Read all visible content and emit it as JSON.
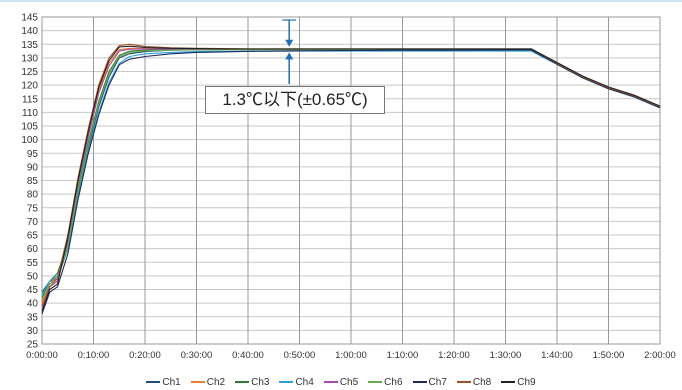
{
  "chart_data": {
    "type": "line",
    "xlabel": "",
    "ylabel": "",
    "x_tick_labels": [
      "0:00:00",
      "0:10:00",
      "0:20:00",
      "0:30:00",
      "0:40:00",
      "0:50:00",
      "1:00:00",
      "1:10:00",
      "1:20:00",
      "1:30:00",
      "1:40:00",
      "1:50:00",
      "2:00:00"
    ],
    "xlim": [
      0,
      120
    ],
    "x_unit": "minutes",
    "ylim": [
      25,
      145
    ],
    "y_tick_step": 5,
    "grid": "major vertical every 10 min, horizontal every 5",
    "legend_position": "bottom",
    "annotation": {
      "text": "1.3℃以下(±0.65℃)",
      "x": 48,
      "y_range": [
        132.4,
        133.7
      ]
    },
    "series": [
      {
        "name": "Ch1",
        "color": "#1f4e79",
        "x": [
          0,
          1.5,
          3,
          5,
          7,
          9,
          11,
          13,
          15,
          17,
          20,
          25,
          30,
          35,
          40,
          50,
          60,
          70,
          80,
          90,
          95,
          100,
          105,
          110,
          115,
          120
        ],
        "y": [
          44,
          48,
          49,
          60,
          80,
          97,
          112,
          123,
          130,
          131.5,
          132.3,
          132.8,
          133,
          133.1,
          133.1,
          133.1,
          133.2,
          133.2,
          133.2,
          133.2,
          133.2,
          128,
          123,
          119,
          116,
          112
        ]
      },
      {
        "name": "Ch2",
        "color": "#ed7d31",
        "x": [
          0,
          1.5,
          3,
          5,
          7,
          9,
          11,
          13,
          15,
          17,
          20,
          25,
          30,
          35,
          40,
          50,
          60,
          70,
          80,
          90,
          95,
          100,
          105,
          110,
          115,
          120
        ],
        "y": [
          40,
          47,
          50,
          64,
          85,
          102,
          118,
          128,
          133,
          133.5,
          133.4,
          133.3,
          133.2,
          133.2,
          133.2,
          133.2,
          133.2,
          133.2,
          133.2,
          133.2,
          133.2,
          127.8,
          122.8,
          118.8,
          115.8,
          111.8
        ]
      },
      {
        "name": "Ch3",
        "color": "#2e7d32",
        "x": [
          0,
          1.5,
          3,
          5,
          7,
          9,
          11,
          13,
          15,
          17,
          20,
          25,
          30,
          35,
          40,
          50,
          60,
          70,
          80,
          90,
          95,
          100,
          105,
          110,
          115,
          120
        ],
        "y": [
          42,
          48,
          51,
          62,
          82,
          99,
          114,
          125,
          131,
          132.5,
          132.8,
          133,
          133,
          133.1,
          133.1,
          133.1,
          133.1,
          133.1,
          133.1,
          133.1,
          133.1,
          128.2,
          123.2,
          119.2,
          116.2,
          112.2
        ]
      },
      {
        "name": "Ch4",
        "color": "#2e9fd8",
        "x": [
          0,
          1.5,
          3,
          5,
          7,
          9,
          11,
          13,
          15,
          17,
          20,
          25,
          30,
          35,
          40,
          50,
          60,
          70,
          80,
          90,
          95,
          100,
          105,
          110,
          115,
          120
        ],
        "y": [
          43,
          48,
          50,
          60,
          79,
          96,
          110,
          121,
          128,
          130.5,
          131.5,
          132,
          132.3,
          132.4,
          132.4,
          132.5,
          132.5,
          132.5,
          132.5,
          132.5,
          132.5,
          127.6,
          122.6,
          118.6,
          115.6,
          111.6
        ]
      },
      {
        "name": "Ch5",
        "color": "#a64ca6",
        "x": [
          0,
          1.5,
          3,
          5,
          7,
          9,
          11,
          13,
          15,
          17,
          20,
          25,
          30,
          35,
          40,
          50,
          60,
          70,
          80,
          90,
          95,
          100,
          105,
          110,
          115,
          120
        ],
        "y": [
          38,
          46,
          48,
          63,
          84,
          101,
          117,
          127,
          132.5,
          133.2,
          133.3,
          133.2,
          133.2,
          133.2,
          133.2,
          133.2,
          133.2,
          133.2,
          133.2,
          133.2,
          133.2,
          127.9,
          122.9,
          118.9,
          115.9,
          111.9
        ]
      },
      {
        "name": "Ch6",
        "color": "#6aa84f",
        "x": [
          0,
          1.5,
          3,
          5,
          7,
          9,
          11,
          13,
          15,
          17,
          20,
          25,
          30,
          35,
          40,
          50,
          60,
          70,
          80,
          90,
          95,
          100,
          105,
          110,
          115,
          120
        ],
        "y": [
          41,
          47,
          49,
          61,
          81,
          98,
          113,
          124,
          130.5,
          132,
          132.6,
          132.8,
          132.9,
          133,
          133,
          133,
          133,
          133,
          133,
          133,
          133,
          128.1,
          123.1,
          119.1,
          116.1,
          112.1
        ]
      },
      {
        "name": "Ch7",
        "color": "#1a2c5b",
        "x": [
          0,
          1.5,
          3,
          5,
          7,
          9,
          11,
          13,
          15,
          17,
          20,
          25,
          30,
          35,
          40,
          50,
          60,
          70,
          80,
          90,
          95,
          100,
          105,
          110,
          115,
          120
        ],
        "y": [
          36,
          44,
          46,
          58,
          78,
          95,
          109,
          120,
          127.5,
          129.5,
          130.5,
          131.5,
          132,
          132.2,
          132.4,
          132.6,
          132.7,
          132.8,
          132.8,
          132.9,
          132.9,
          127.7,
          122.7,
          118.7,
          115.7,
          111.7
        ]
      },
      {
        "name": "Ch8",
        "color": "#a0522d",
        "x": [
          0,
          1.5,
          3,
          5,
          7,
          9,
          11,
          13,
          15,
          17,
          20,
          25,
          30,
          35,
          40,
          50,
          60,
          70,
          80,
          90,
          95,
          100,
          105,
          110,
          115,
          120
        ],
        "y": [
          39,
          46,
          49,
          65,
          86,
          104,
          120,
          130,
          134.5,
          135,
          134.2,
          133.7,
          133.5,
          133.4,
          133.3,
          133.3,
          133.3,
          133.3,
          133.3,
          133.3,
          133.3,
          128,
          123,
          119,
          116,
          112
        ]
      },
      {
        "name": "Ch9",
        "color": "#222222",
        "x": [
          0,
          1.5,
          3,
          5,
          7,
          9,
          11,
          13,
          15,
          17,
          20,
          25,
          30,
          35,
          40,
          50,
          60,
          70,
          80,
          90,
          95,
          100,
          105,
          110,
          115,
          120
        ],
        "y": [
          37,
          45,
          47,
          64,
          85,
          103,
          119,
          129,
          134,
          134.3,
          133.8,
          133.5,
          133.4,
          133.3,
          133.3,
          133.3,
          133.3,
          133.3,
          133.3,
          133.3,
          133.3,
          128.3,
          123.3,
          119.3,
          116.3,
          112.3
        ]
      }
    ]
  }
}
